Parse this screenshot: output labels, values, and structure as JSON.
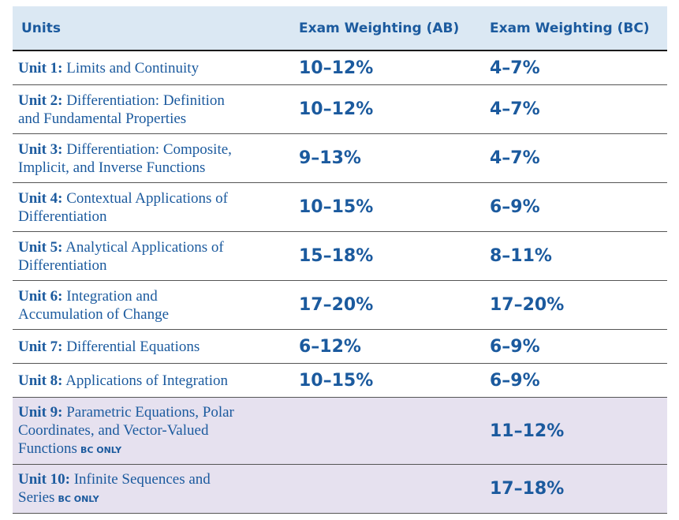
{
  "header": {
    "units": "Units",
    "ab": "Exam Weighting (AB)",
    "bc": "Exam Weighting (BC)"
  },
  "rows": [
    {
      "unit": "Unit 1:",
      "title_lines": [
        "Limits and Continuity"
      ],
      "bc_only": "",
      "ab": "10–12%",
      "bc": "4–7%"
    },
    {
      "unit": "Unit 2:",
      "title_lines": [
        "Differentiation: Definition",
        "and Fundamental Properties"
      ],
      "bc_only": "",
      "ab": "10–12%",
      "bc": "4–7%"
    },
    {
      "unit": "Unit 3:",
      "title_lines": [
        "Differentiation: Composite,",
        "Implicit, and Inverse Functions"
      ],
      "bc_only": "",
      "ab": "9–13%",
      "bc": "4–7%"
    },
    {
      "unit": "Unit 4:",
      "title_lines": [
        "Contextual Applications of",
        "Differentiation"
      ],
      "bc_only": "",
      "ab": "10–15%",
      "bc": "6–9%"
    },
    {
      "unit": "Unit 5:",
      "title_lines": [
        "Analytical Applications of",
        "Differentiation"
      ],
      "bc_only": "",
      "ab": "15–18%",
      "bc": "8–11%"
    },
    {
      "unit": "Unit 6:",
      "title_lines": [
        "Integration and",
        "Accumulation of Change"
      ],
      "bc_only": "",
      "ab": "17–20%",
      "bc": "17–20%"
    },
    {
      "unit": "Unit 7:",
      "title_lines": [
        "Differential Equations"
      ],
      "bc_only": "",
      "ab": "6–12%",
      "bc": "6–9%"
    },
    {
      "unit": "Unit 8:",
      "title_lines": [
        "Applications of Integration"
      ],
      "bc_only": "",
      "ab": "10–15%",
      "bc": "6–9%"
    },
    {
      "unit": "Unit 9:",
      "title_lines": [
        "Parametric Equations, Polar",
        "Coordinates, and Vector-Valued",
        "Functions"
      ],
      "bc_only": "BC ONLY",
      "ab": "",
      "bc": "11–12%"
    },
    {
      "unit": "Unit 10:",
      "title_lines": [
        "Infinite Sequences and",
        "Series"
      ],
      "bc_only": "BC ONLY",
      "ab": "",
      "bc": "17–18%"
    }
  ],
  "colors": {
    "text": "#1b5a9e",
    "header_bg": "#dbe8f3",
    "bc_only_bg": "#e6e1ef"
  }
}
